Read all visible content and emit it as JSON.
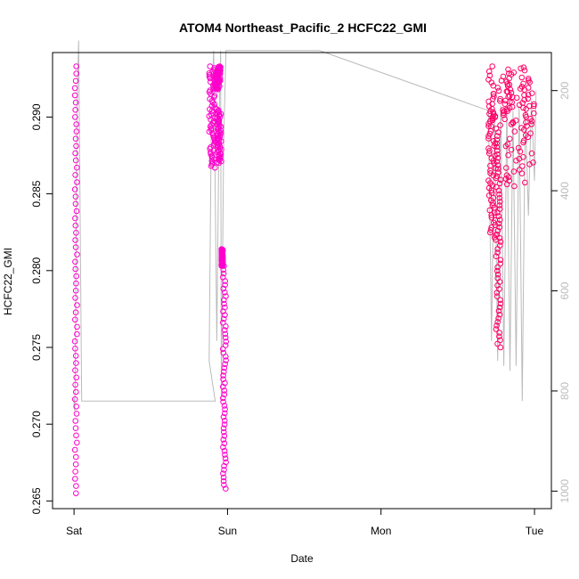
{
  "chart_data": {
    "type": "scatter",
    "title": "ATOM4 Northeast_Pacific_2 HCFC22_GMI",
    "xlabel": "Date",
    "ylabel": "HCFC22_GMI",
    "x_ticks": [
      "Sat",
      "Sun",
      "Mon",
      "Tue"
    ],
    "x_tick_values": [
      0,
      1,
      2,
      3
    ],
    "xlim": [
      -0.14,
      3.11
    ],
    "ylim": [
      0.2645,
      0.2942
    ],
    "y_ticks": [
      "0.265",
      "0.270",
      "0.275",
      "0.280",
      "0.285",
      "0.290"
    ],
    "y_tick_values": [
      0.265,
      0.27,
      0.275,
      0.28,
      0.285,
      0.29
    ],
    "y2_ticks": [
      "200",
      "400",
      "600",
      "800",
      "1000"
    ],
    "y2_tick_values": [
      200,
      400,
      600,
      800,
      1000
    ],
    "y2lim": [
      1035,
      124
    ],
    "grid": false,
    "marker_colors": [
      "#ff00cc",
      "#ff0066"
    ],
    "line_color": "#bbbbbb",
    "series": [
      {
        "segments": [
          {
            "x_start": 0.005,
            "x_end": 0.02,
            "y_start": 0.2655,
            "y_end": 0.2933
          },
          {
            "x_start": 0.88,
            "x_end": 0.92,
            "y_start": 0.2867,
            "y_end": 0.2933
          },
          {
            "x_start": 0.92,
            "x_end": 0.955,
            "y_start": 0.2918,
            "y_end": 0.2933
          },
          {
            "x_start": 0.93,
            "x_end": 0.96,
            "y_start": 0.287,
            "y_end": 0.2905
          },
          {
            "x_start": 0.96,
            "x_end": 0.97,
            "y_start": 0.2803,
            "y_end": 0.2814
          },
          {
            "x_start": 0.97,
            "x_end": 0.99,
            "y_start": 0.2658,
            "y_end": 0.2803
          },
          {
            "x_start": 2.7,
            "x_end": 3.0,
            "y_start": 0.2894,
            "y_end": 0.2933
          },
          {
            "x_start": 2.7,
            "x_end": 2.75,
            "y_start": 0.282,
            "y_end": 0.2915
          },
          {
            "x_start": 2.75,
            "x_end": 2.78,
            "y_start": 0.275,
            "y_end": 0.289
          },
          {
            "x_start": 2.8,
            "x_end": 3.0,
            "y_start": 0.2855,
            "y_end": 0.2925
          }
        ]
      }
    ],
    "pressure_path": [
      [
        0.0,
        815
      ],
      [
        0.0,
        830
      ],
      [
        0.005,
        840
      ],
      [
        0.01,
        700
      ],
      [
        0.015,
        400
      ],
      [
        0.02,
        220
      ],
      [
        0.03,
        100
      ],
      [
        0.05,
        820
      ],
      [
        0.4,
        820
      ],
      [
        0.9,
        820
      ],
      [
        0.92,
        820
      ],
      [
        0.88,
        740
      ],
      [
        0.895,
        250
      ],
      [
        0.91,
        120
      ],
      [
        0.93,
        700
      ],
      [
        0.945,
        250
      ],
      [
        0.955,
        120
      ],
      [
        0.96,
        820
      ],
      [
        0.975,
        300
      ],
      [
        0.99,
        120
      ],
      [
        1.6,
        120
      ],
      [
        2.7,
        240
      ],
      [
        2.72,
        700
      ],
      [
        2.74,
        240
      ],
      [
        2.76,
        740
      ],
      [
        2.78,
        230
      ],
      [
        2.8,
        750
      ],
      [
        2.82,
        230
      ],
      [
        2.84,
        760
      ],
      [
        2.86,
        240
      ],
      [
        2.88,
        750
      ],
      [
        2.9,
        230
      ],
      [
        2.92,
        820
      ],
      [
        2.94,
        230
      ],
      [
        2.96,
        450
      ],
      [
        2.98,
        220
      ],
      [
        3.0,
        380
      ],
      [
        3.01,
        200
      ]
    ]
  }
}
